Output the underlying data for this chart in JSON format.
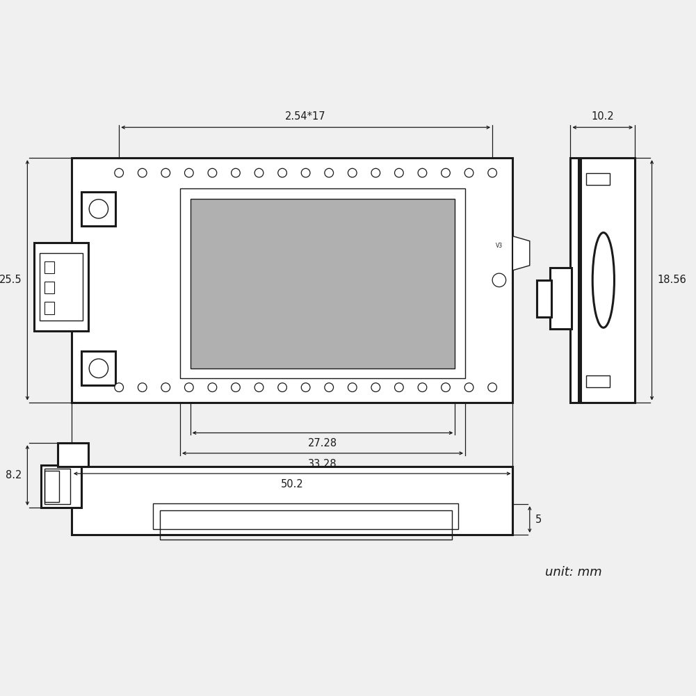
{
  "bg_color": "#f0f0f0",
  "line_color": "#1a1a1a",
  "gray_fill": "#b0b0b0",
  "white_fill": "#ffffff",
  "labels": {
    "width_top": "2.54*17",
    "height_left": "25.5",
    "dim_2728": "27.28",
    "dim_3328": "33.28",
    "dim_502": "50.2",
    "dim_102": "10.2",
    "dim_1856": "18.56",
    "dim_82": "8.2",
    "dim_5": "5",
    "v3": "V3",
    "unit": "unit: mm"
  },
  "font_size": 10.5,
  "font_size_unit": 13,
  "lw_main": 2.2,
  "lw_thin": 1.0,
  "lw_dim": 0.9
}
